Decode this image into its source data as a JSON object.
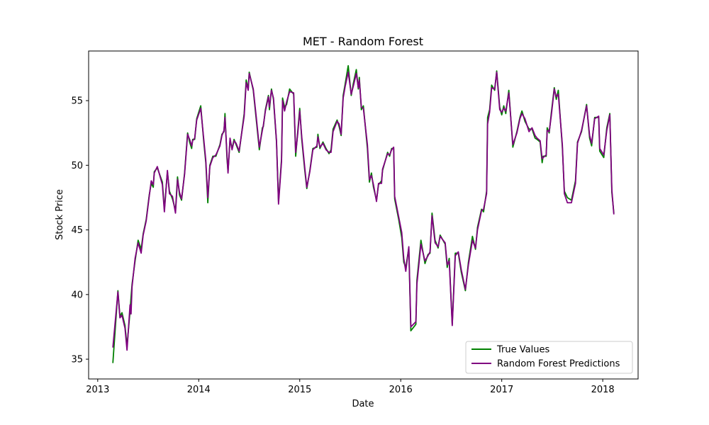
{
  "chart_data": {
    "type": "line",
    "title": "MET - Random Forest",
    "x_label": "Date",
    "y_label": "Stock Price",
    "x": [
      2013.15,
      2013.2,
      2013.22,
      2013.24,
      2013.27,
      2013.29,
      2013.32,
      2013.33,
      2013.34,
      2013.37,
      2013.4,
      2013.43,
      2013.45,
      2013.48,
      2013.51,
      2013.53,
      2013.55,
      2013.56,
      2013.59,
      2013.64,
      2013.66,
      2013.69,
      2013.71,
      2013.74,
      2013.77,
      2013.79,
      2013.81,
      2013.83,
      2013.86,
      2013.89,
      2013.91,
      2013.93,
      2013.94,
      2013.96,
      2013.98,
      2014.02,
      2014.05,
      2014.07,
      2014.09,
      2014.11,
      2014.14,
      2014.17,
      2014.21,
      2014.23,
      2014.25,
      2014.26,
      2014.28,
      2014.29,
      2014.31,
      2014.33,
      2014.35,
      2014.37,
      2014.4,
      2014.45,
      2014.47,
      2014.49,
      2014.5,
      2014.54,
      2014.57,
      2014.6,
      2014.63,
      2014.64,
      2014.66,
      2014.69,
      2014.7,
      2014.72,
      2014.74,
      2014.77,
      2014.79,
      2014.82,
      2014.83,
      2014.85,
      2014.87,
      2014.9,
      2014.94,
      2014.96,
      2014.98,
      2015.0,
      2015.02,
      2015.05,
      2015.07,
      2015.1,
      2015.13,
      2015.17,
      2015.18,
      2015.2,
      2015.23,
      2015.26,
      2015.29,
      2015.31,
      2015.33,
      2015.37,
      2015.39,
      2015.41,
      2015.43,
      2015.45,
      2015.48,
      2015.51,
      2015.53,
      2015.56,
      2015.58,
      2015.59,
      2015.61,
      2015.63,
      2015.67,
      2015.69,
      2015.71,
      2015.73,
      2015.76,
      2015.78,
      2015.81,
      2015.82,
      2015.87,
      2015.89,
      2015.91,
      2015.93,
      2015.94,
      2015.98,
      2016.01,
      2016.03,
      2016.05,
      2016.08,
      2016.1,
      2016.15,
      2016.16,
      2016.2,
      2016.24,
      2016.27,
      2016.29,
      2016.31,
      2016.34,
      2016.37,
      2016.39,
      2016.44,
      2016.46,
      2016.48,
      2016.51,
      2016.54,
      2016.57,
      2016.6,
      2016.64,
      2016.67,
      2016.71,
      2016.74,
      2016.76,
      2016.8,
      2016.82,
      2016.85,
      2016.86,
      2016.88,
      2016.9,
      2016.93,
      2016.95,
      2016.98,
      2017.0,
      2017.02,
      2017.04,
      2017.07,
      2017.11,
      2017.15,
      2017.18,
      2017.2,
      2017.23,
      2017.27,
      2017.3,
      2017.33,
      2017.35,
      2017.38,
      2017.4,
      2017.41,
      2017.44,
      2017.45,
      2017.47,
      2017.49,
      2017.52,
      2017.54,
      2017.56,
      2017.6,
      2017.62,
      2017.65,
      2017.69,
      2017.73,
      2017.75,
      2017.79,
      2017.84,
      2017.87,
      2017.89,
      2017.92,
      2017.96,
      2017.97,
      2018.01,
      2018.04,
      2018.07,
      2018.09,
      2018.11
    ],
    "series": [
      {
        "name": "True Values",
        "color": "#008000",
        "values": [
          34.7,
          40.3,
          38.3,
          38.6,
          37.6,
          36.0,
          38.7,
          39.8,
          40.8,
          42.6,
          44.2,
          43.5,
          44.7,
          45.8,
          47.7,
          48.6,
          48.3,
          49.5,
          49.8,
          48.7,
          46.6,
          49.5,
          48.0,
          47.4,
          46.5,
          49.1,
          47.7,
          47.3,
          49.4,
          52.5,
          51.8,
          51.3,
          52.0,
          52.0,
          53.6,
          54.6,
          51.8,
          50.2,
          47.1,
          50.0,
          50.7,
          50.7,
          51.6,
          52.4,
          52.6,
          54.0,
          50.5,
          49.5,
          52.0,
          51.3,
          52.0,
          51.6,
          51.0,
          54.0,
          56.6,
          55.9,
          57.2,
          55.8,
          53.5,
          51.2,
          52.9,
          53.0,
          54.3,
          55.4,
          54.3,
          55.9,
          55.1,
          51.8,
          47.2,
          50.5,
          55.2,
          54.5,
          54.7,
          55.9,
          55.5,
          50.7,
          52.6,
          54.4,
          52.0,
          49.6,
          48.2,
          49.6,
          51.3,
          51.4,
          52.4,
          51.3,
          51.8,
          51.3,
          50.9,
          51.2,
          52.8,
          53.5,
          53.0,
          52.3,
          55.4,
          56.3,
          57.7,
          55.4,
          56.3,
          57.4,
          55.9,
          56.8,
          54.3,
          54.6,
          51.3,
          48.7,
          49.4,
          48.3,
          47.3,
          48.5,
          48.8,
          49.6,
          51.0,
          50.7,
          51.3,
          51.3,
          47.4,
          45.8,
          44.4,
          42.5,
          42.1,
          43.6,
          37.2,
          37.7,
          41.1,
          44.2,
          42.4,
          43.1,
          43.2,
          46.3,
          44.2,
          43.6,
          44.6,
          43.9,
          42.1,
          42.8,
          37.7,
          43.2,
          43.2,
          41.7,
          40.3,
          42.5,
          44.5,
          43.5,
          45.2,
          46.6,
          46.4,
          48.0,
          53.7,
          54.3,
          56.2,
          55.8,
          57.3,
          54.5,
          53.9,
          54.6,
          54.0,
          55.8,
          51.4,
          52.6,
          53.7,
          54.2,
          53.4,
          52.8,
          52.8,
          52.1,
          52.0,
          51.8,
          50.2,
          50.7,
          50.7,
          52.9,
          52.5,
          54.0,
          56.0,
          55.1,
          55.8,
          51.4,
          48.0,
          47.5,
          47.3,
          48.8,
          51.8,
          52.6,
          54.7,
          52.1,
          51.5,
          53.7,
          53.7,
          51.1,
          50.6,
          52.9,
          54.0,
          47.9,
          46.3
        ]
      },
      {
        "name": "Random Forest Predictions",
        "color": "#800080",
        "values": [
          35.9,
          40.2,
          38.2,
          38.4,
          37.4,
          35.7,
          39.2,
          38.5,
          40.6,
          42.8,
          44.0,
          43.2,
          44.6,
          45.7,
          47.6,
          48.8,
          48.5,
          49.4,
          49.9,
          48.5,
          46.4,
          49.6,
          47.8,
          47.6,
          46.3,
          48.9,
          47.9,
          47.4,
          49.3,
          52.4,
          52.0,
          51.5,
          51.9,
          52.1,
          53.5,
          54.4,
          52.0,
          50.4,
          47.5,
          49.9,
          50.6,
          50.8,
          51.5,
          52.3,
          52.7,
          53.7,
          50.8,
          49.4,
          52.1,
          51.2,
          51.9,
          51.7,
          51.1,
          53.8,
          56.4,
          55.8,
          57.1,
          55.9,
          53.7,
          51.4,
          52.7,
          53.1,
          54.2,
          55.3,
          54.5,
          55.8,
          55.2,
          51.9,
          47.0,
          50.3,
          55.0,
          54.2,
          54.9,
          55.7,
          55.6,
          51.0,
          52.4,
          54.2,
          52.2,
          49.8,
          48.3,
          49.5,
          51.2,
          51.5,
          52.2,
          51.4,
          51.7,
          51.2,
          51.0,
          51.0,
          52.6,
          53.4,
          53.2,
          52.4,
          55.2,
          56.1,
          57.2,
          55.5,
          56.1,
          57.1,
          56.0,
          56.6,
          54.5,
          54.4,
          51.6,
          48.9,
          49.2,
          48.5,
          47.2,
          48.6,
          48.6,
          49.7,
          50.9,
          50.8,
          51.2,
          51.4,
          47.6,
          46.0,
          44.8,
          42.8,
          41.8,
          43.7,
          37.5,
          37.9,
          40.8,
          43.9,
          42.6,
          43.0,
          43.3,
          46.1,
          44.0,
          43.7,
          44.5,
          44.0,
          42.3,
          42.6,
          37.6,
          43.0,
          43.3,
          41.9,
          40.4,
          42.3,
          44.2,
          43.6,
          45.0,
          46.5,
          46.6,
          47.8,
          53.2,
          54.1,
          56.0,
          55.9,
          57.2,
          54.3,
          54.1,
          54.4,
          54.2,
          55.6,
          51.6,
          52.5,
          53.6,
          54.0,
          53.6,
          52.6,
          52.9,
          52.3,
          52.1,
          51.9,
          50.5,
          50.6,
          50.8,
          52.7,
          52.6,
          53.8,
          55.9,
          55.3,
          55.5,
          51.6,
          47.8,
          47.1,
          47.1,
          48.6,
          51.7,
          52.7,
          54.6,
          52.3,
          51.7,
          53.6,
          53.8,
          51.3,
          50.8,
          52.7,
          53.9,
          48.1,
          46.2
        ]
      }
    ],
    "xlim": [
      2012.91,
      2018.35
    ],
    "xticks": [
      2013,
      2014,
      2015,
      2016,
      2017,
      2018
    ],
    "ylim": [
      33.47,
      58.84
    ],
    "yticks": [
      35,
      40,
      45,
      50,
      55
    ],
    "grid": false,
    "legend": "lower right"
  }
}
